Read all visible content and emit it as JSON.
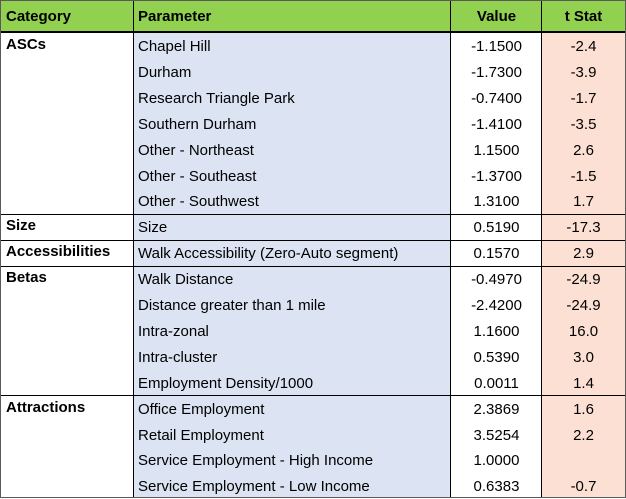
{
  "header": {
    "category": "Category",
    "parameter": "Parameter",
    "value": "Value",
    "tstat": "t Stat"
  },
  "groups": [
    {
      "category": "ASCs",
      "rows": [
        {
          "parameter": "Chapel Hill",
          "value": "-1.1500",
          "tstat": "-2.4"
        },
        {
          "parameter": "Durham",
          "value": "-1.7300",
          "tstat": "-3.9"
        },
        {
          "parameter": "Research Triangle Park",
          "value": "-0.7400",
          "tstat": "-1.7"
        },
        {
          "parameter": "Southern Durham",
          "value": "-1.4100",
          "tstat": "-3.5"
        },
        {
          "parameter": "Other - Northeast",
          "value": "1.1500",
          "tstat": "2.6"
        },
        {
          "parameter": "Other - Southeast",
          "value": "-1.3700",
          "tstat": "-1.5"
        },
        {
          "parameter": "Other - Southwest",
          "value": "1.3100",
          "tstat": "1.7"
        }
      ]
    },
    {
      "category": "Size",
      "rows": [
        {
          "parameter": "Size",
          "value": "0.5190",
          "tstat": "-17.3"
        }
      ]
    },
    {
      "category": "Accessibilities",
      "rows": [
        {
          "parameter": "Walk Accessibility (Zero-Auto segment)",
          "value": "0.1570",
          "tstat": "2.9"
        }
      ]
    },
    {
      "category": "Betas",
      "rows": [
        {
          "parameter": "Walk Distance",
          "value": "-0.4970",
          "tstat": "-24.9"
        },
        {
          "parameter": "Distance greater than 1 mile",
          "value": "-2.4200",
          "tstat": "-24.9"
        },
        {
          "parameter": "Intra-zonal",
          "value": "1.1600",
          "tstat": "16.0"
        },
        {
          "parameter": "Intra-cluster",
          "value": "0.5390",
          "tstat": "3.0"
        },
        {
          "parameter": "Employment Density/1000",
          "value": "0.0011",
          "tstat": "1.4"
        }
      ]
    },
    {
      "category": "Attractions",
      "rows": [
        {
          "parameter": "Office Employment",
          "value": "2.3869",
          "tstat": "1.6"
        },
        {
          "parameter": "Retail Employment",
          "value": "3.5254",
          "tstat": "2.2"
        },
        {
          "parameter": "Service  Employment - High Income",
          "value": "1.0000",
          "tstat": ""
        },
        {
          "parameter": "Service  Employment - Low Income",
          "value": "0.6383",
          "tstat": "-0.7"
        }
      ]
    }
  ],
  "colors": {
    "header": "#92d050",
    "parameter_col": "#dce3f2",
    "tstat_col": "#fce0d3"
  }
}
